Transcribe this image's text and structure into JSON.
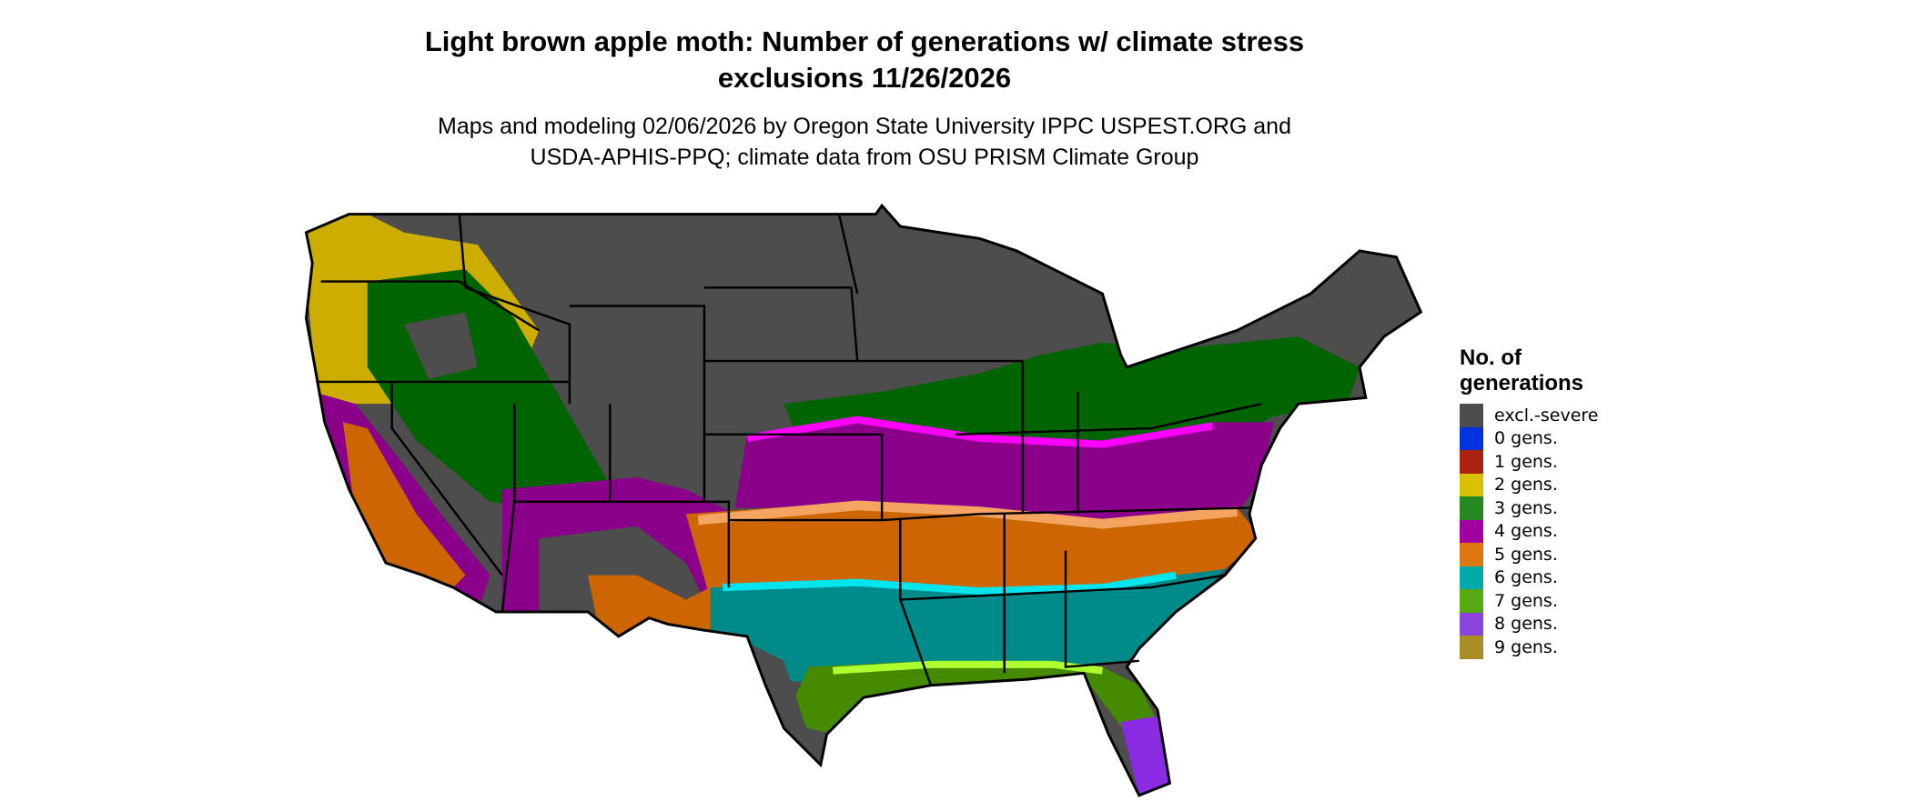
{
  "header": {
    "title_line1": "Light brown apple moth: Number of generations w/ climate stress",
    "title_line2": "exclusions 11/26/2026",
    "subtitle_line1": "Maps and modeling 02/06/2026 by Oregon State University IPPC USPEST.ORG and",
    "subtitle_line2": "USDA-APHIS-PPQ; climate data from OSU PRISM Climate Group"
  },
  "map": {
    "region": "contiguous United States",
    "colors": {
      "excluded": "#4d4d4d",
      "dark_green": "#006400",
      "purple": "#8b008b",
      "magenta": "#ff00ff",
      "orange": "#cd6600",
      "light_orange": "#f4a460",
      "teal": "#008b8b",
      "cyan": "#00e5ee",
      "lime": "#458b00",
      "yellow_green": "#adff2f",
      "violet": "#8a2be2",
      "gold": "#cdad00",
      "state_border": "#000000"
    }
  },
  "legend": {
    "title_line1": "No. of",
    "title_line2": "generations",
    "items": [
      {
        "label": "excl.-severe",
        "color": "#4d4d4d"
      },
      {
        "label": "0 gens.",
        "color": "#0033dd"
      },
      {
        "label": "1 gens.",
        "color": "#aa2211"
      },
      {
        "label": "2 gens.",
        "color": "#d9c000"
      },
      {
        "label": "3 gens.",
        "color": "#228822"
      },
      {
        "label": "4 gens.",
        "color": "#a000a0"
      },
      {
        "label": "5 gens.",
        "color": "#dd7711"
      },
      {
        "label": "6 gens.",
        "color": "#00aaaa"
      },
      {
        "label": "7 gens.",
        "color": "#55aa11"
      },
      {
        "label": "8 gens.",
        "color": "#8844dd"
      },
      {
        "label": "9 gens.",
        "color": "#a88d22"
      }
    ]
  }
}
